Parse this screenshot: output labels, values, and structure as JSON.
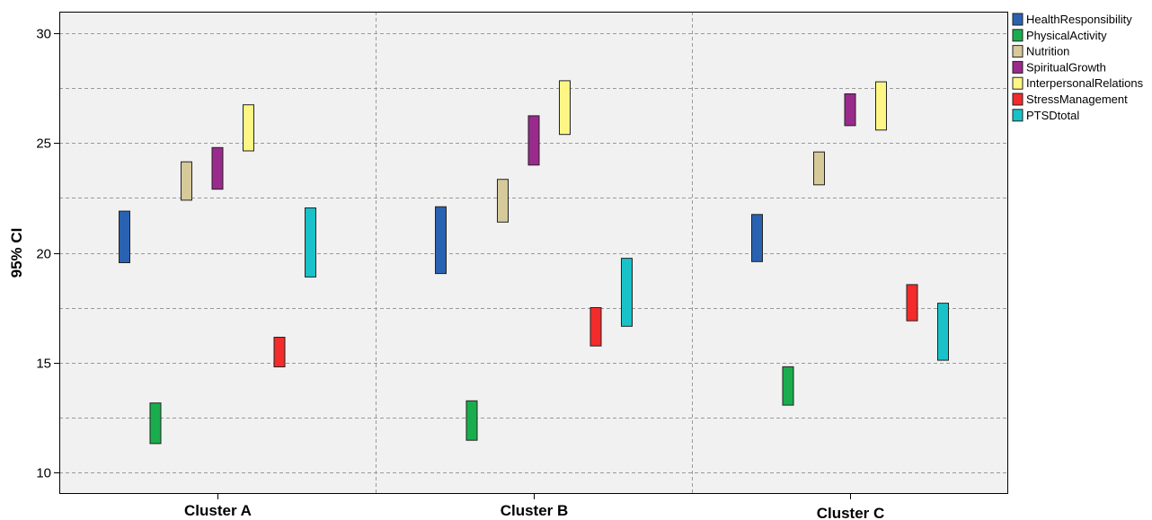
{
  "chart_data": {
    "type": "error-bar",
    "ylabel": "95% CI",
    "ylim": [
      9,
      31
    ],
    "yticks": [
      "10",
      "15",
      "20",
      "25",
      "30"
    ],
    "categories": [
      "Cluster A",
      "Cluster B",
      "Cluster C"
    ],
    "grid": true,
    "legend_placement": "right",
    "series": [
      {
        "name": "HealthResponsibility",
        "color": "#2a62b2",
        "ranges": [
          [
            19.55,
            21.9
          ],
          [
            19.05,
            22.1
          ],
          [
            19.6,
            21.75
          ]
        ]
      },
      {
        "name": "PhysicalActivity",
        "color": "#1aad4e",
        "ranges": [
          [
            11.3,
            13.15
          ],
          [
            11.45,
            13.25
          ],
          [
            13.05,
            14.8
          ]
        ]
      },
      {
        "name": "Nutrition",
        "color": "#d6c99a",
        "ranges": [
          [
            22.4,
            24.15
          ],
          [
            21.4,
            23.35
          ],
          [
            23.1,
            24.6
          ]
        ]
      },
      {
        "name": "SpiritualGrowth",
        "color": "#9a2a8c",
        "ranges": [
          [
            22.9,
            24.8
          ],
          [
            24.0,
            26.25
          ],
          [
            25.8,
            27.25
          ]
        ]
      },
      {
        "name": "InterpersonalRelations",
        "color": "#fdf685",
        "ranges": [
          [
            24.65,
            26.75
          ],
          [
            25.4,
            27.85
          ],
          [
            25.6,
            27.8
          ]
        ]
      },
      {
        "name": "StressManagement",
        "color": "#f32b2b",
        "ranges": [
          [
            14.8,
            16.15
          ],
          [
            15.75,
            17.5
          ],
          [
            16.9,
            18.55
          ]
        ]
      },
      {
        "name": "PTSDtotal",
        "color": "#19c2c9",
        "ranges": [
          [
            18.9,
            22.05
          ],
          [
            16.65,
            19.75
          ],
          [
            15.1,
            17.7
          ]
        ]
      }
    ]
  }
}
